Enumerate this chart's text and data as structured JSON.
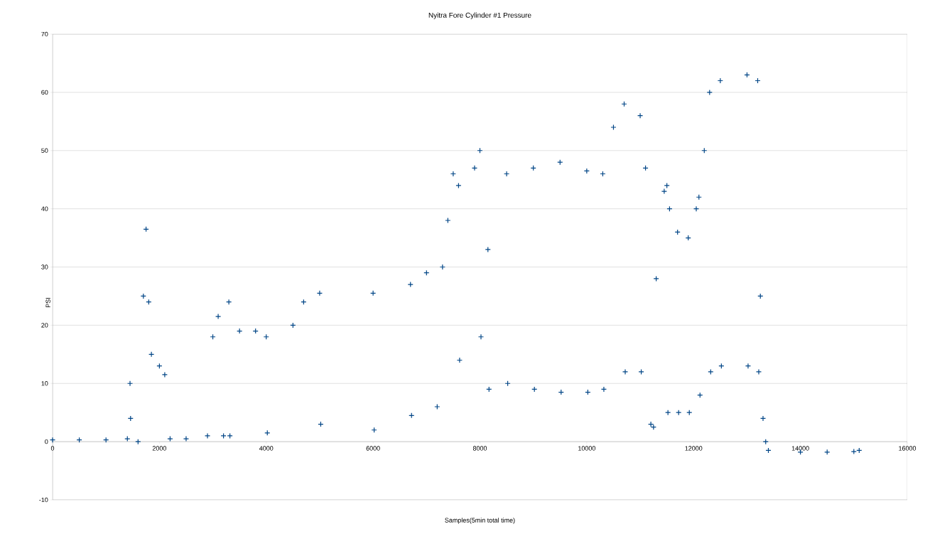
{
  "chart_data": {
    "type": "scatter",
    "title": "Nyitra Fore Cylinder #1 Pressure",
    "xlabel": "Samples(5min total time)",
    "ylabel": "PSI",
    "xlim": [
      0,
      16000
    ],
    "ylim": [
      -10,
      70
    ],
    "xticks": [
      0,
      2000,
      4000,
      6000,
      8000,
      10000,
      12000,
      14000,
      16000
    ],
    "yticks": [
      -10,
      0,
      10,
      20,
      30,
      40,
      50,
      60,
      70
    ],
    "grid": "y",
    "marker": "cross",
    "color": "#004586",
    "x": [
      0,
      500,
      1000,
      1400,
      1450,
      1460,
      1600,
      1700,
      1750,
      1800,
      1850,
      2000,
      2100,
      2200,
      2500,
      2900,
      3000,
      3100,
      3200,
      3300,
      3320,
      3500,
      3800,
      4000,
      4020,
      4500,
      4700,
      5000,
      5020,
      6000,
      6020,
      6700,
      6720,
      7000,
      7200,
      7300,
      7400,
      7500,
      7600,
      7620,
      7900,
      8000,
      8020,
      8150,
      8170,
      8500,
      8520,
      9000,
      9020,
      9500,
      9520,
      10000,
      10020,
      10300,
      10320,
      10500,
      10700,
      10720,
      11000,
      11020,
      11100,
      11200,
      11250,
      11300,
      11450,
      11500,
      11520,
      11550,
      11700,
      11720,
      11900,
      11920,
      12050,
      12100,
      12120,
      12200,
      12300,
      12320,
      12500,
      12520,
      13000,
      13020,
      13200,
      13220,
      13250,
      13300,
      13350,
      13400,
      14000,
      14500,
      15000,
      15100
    ],
    "values": [
      0.3,
      0.3,
      0.3,
      0.5,
      10,
      4,
      0,
      25,
      36.5,
      24,
      15,
      13,
      11.5,
      0.5,
      0.5,
      1,
      18,
      21.5,
      1,
      24,
      1,
      19,
      19,
      18,
      1.5,
      20,
      24,
      25.5,
      3,
      25.5,
      2,
      27,
      4.5,
      29,
      6,
      30,
      38,
      46,
      44,
      14,
      47,
      50,
      18,
      33,
      9,
      46,
      10,
      47,
      9,
      48,
      8.5,
      46.5,
      8.5,
      46,
      9,
      54,
      58,
      12,
      56,
      12,
      47,
      3,
      2.5,
      28,
      43,
      44,
      5,
      40,
      36,
      5,
      35,
      5,
      40,
      42,
      8,
      50,
      60,
      12,
      62,
      13,
      63,
      13,
      62,
      12,
      25,
      4,
      0,
      -1.5,
      -1.8,
      -1.8,
      -1.7,
      -1.5
    ]
  }
}
